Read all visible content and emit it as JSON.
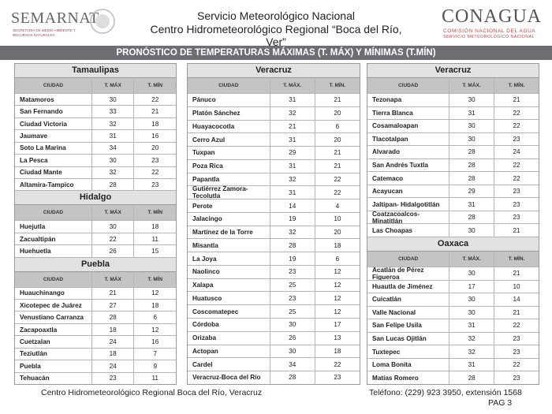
{
  "header": {
    "logo_left": "SEMARNAT",
    "logo_left_sub": "SECRETARÍA DE MEDIO AMBIENTE Y RECURSOS NATURALES",
    "title": "Servicio Meteorológico Nacional",
    "subtitle": "Centro Hidrometeorológico Regional “Boca del Río, Ver”",
    "logo_right": "CONAGUA",
    "logo_right_sub1": "COMISIÓN NACIONAL DEL AGUA",
    "logo_right_sub2": "SERVICIO METEOROLÓGICO NACIONAL"
  },
  "banner": "PRONÓSTICO DE TEMPERATURAS MÁXIMAS (T. MÁX) Y MÍNIMAS (T.MÍN)",
  "columns": [
    [
      {
        "title": "Tamaulipas",
        "headers": [
          "CIUDAD",
          "T. MÁX",
          "T. MÍN"
        ],
        "rows": [
          [
            "Matamoros",
            30,
            22
          ],
          [
            "San Fernando",
            33,
            21
          ],
          [
            "Ciudad Victoria",
            32,
            18
          ],
          [
            "Jaumave",
            31,
            16
          ],
          [
            "Soto La Marina",
            34,
            20
          ],
          [
            "La Pesca",
            30,
            23
          ],
          [
            "Ciudad Mante",
            32,
            22
          ],
          [
            "Altamira-Tampico",
            28,
            23
          ]
        ]
      },
      {
        "title": "Hidalgo",
        "headers": [
          "CIUDAD",
          "T. MÁX",
          "T. MÍN"
        ],
        "rows": [
          [
            "Huejutla",
            30,
            18
          ],
          [
            "Zacualtipán",
            22,
            11
          ],
          [
            "Huehuetla",
            26,
            15
          ]
        ]
      },
      {
        "title": "Puebla",
        "headers": [
          "CIUDAD",
          "T. MÁX",
          "T. MÍN"
        ],
        "rows": [
          [
            "Huauchinango",
            21,
            12
          ],
          [
            "Xicotepec de Juárez",
            27,
            18
          ],
          [
            "Venustiano Carranza",
            28,
            6
          ],
          [
            "Zacapoaxtla",
            18,
            12
          ],
          [
            "Cuetzalan",
            24,
            16
          ],
          [
            "Teziutlán",
            18,
            7
          ],
          [
            "Puebla",
            24,
            9
          ],
          [
            "Tehuacán",
            23,
            11
          ]
        ]
      }
    ],
    [
      {
        "title": "Veracruz",
        "headers": [
          "CIUDAD",
          "T. MÁX.",
          "T. MÍN."
        ],
        "rows": [
          [
            "Pánuco",
            31,
            21
          ],
          [
            "Platón Sánchez",
            32,
            20
          ],
          [
            "Huayacocotla",
            21,
            6
          ],
          [
            "Cerro Azul",
            31,
            20
          ],
          [
            "Tuxpan",
            29,
            21
          ],
          [
            "Poza Rica",
            31,
            21
          ],
          [
            "Papantla",
            32,
            22
          ],
          [
            "Gutiérrez Zamora-Tecolutla",
            31,
            22
          ],
          [
            "Perote",
            14,
            4
          ],
          [
            "Jalacingo",
            19,
            10
          ],
          [
            "Martínez de la Torre",
            32,
            20
          ],
          [
            "Misantla",
            28,
            18
          ],
          [
            "La Joya",
            19,
            6
          ],
          [
            "Naolinco",
            23,
            12
          ],
          [
            "Xalapa",
            25,
            12
          ],
          [
            "Huatusco",
            23,
            12
          ],
          [
            "Coscomatepec",
            25,
            12
          ],
          [
            "Córdoba",
            30,
            17
          ],
          [
            "Orizaba",
            26,
            13
          ],
          [
            "Actopan",
            30,
            18
          ],
          [
            "Cardel",
            34,
            22
          ],
          [
            "Veracruz-Boca del Río",
            28,
            23
          ]
        ]
      }
    ],
    [
      {
        "title": "Veracruz",
        "headers": [
          "CIUDAD",
          "T. MÁX.",
          "T. MÍN."
        ],
        "rows": [
          [
            "Tezonapa",
            30,
            21
          ],
          [
            "Tierra Blanca",
            31,
            22
          ],
          [
            "Cosamaloapan",
            30,
            22
          ],
          [
            "Tlacotalpan",
            30,
            23
          ],
          [
            "Alvarado",
            28,
            24
          ],
          [
            "San Andrés Tuxtla",
            28,
            22
          ],
          [
            "Catemaco",
            28,
            22
          ],
          [
            "Acayucan",
            29,
            23
          ],
          [
            "Jaltipan- Hidalgotitlán",
            31,
            23
          ],
          [
            "Coatzacoalcos-Minatitlán",
            28,
            23
          ],
          [
            "Las Choapas",
            30,
            21
          ]
        ]
      },
      {
        "title": "Oaxaca",
        "headers": [
          "CIUDAD",
          "T. MÁX.",
          "T. MÍN."
        ],
        "rows": [
          [
            "Acatlán de Pérez Figueroa",
            30,
            21
          ],
          [
            "Huautla de Jiménez",
            17,
            10
          ],
          [
            "Cuicatlán",
            30,
            14
          ],
          [
            "Valle Nacional",
            30,
            21
          ],
          [
            "San Felipe Usila",
            31,
            22
          ],
          [
            "San Lucas Ojitlán",
            32,
            23
          ],
          [
            "Tuxtepec",
            32,
            23
          ],
          [
            "Loma Bonita",
            31,
            22
          ],
          [
            "Matías Romero",
            28,
            23
          ]
        ]
      }
    ]
  ],
  "footer": {
    "left": "Centro Hidrometeorológico Regional Boca del Río, Veracruz",
    "right": "Teléfono: (229) 923 3950, extensión 1568",
    "page": "PAG 3"
  }
}
